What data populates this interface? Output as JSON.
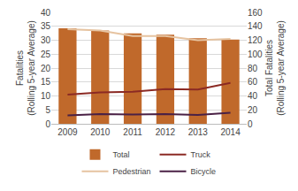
{
  "chart_data": {
    "type": "bar",
    "categories": [
      "2009",
      "2010",
      "2011",
      "2012",
      "2013",
      "2014"
    ],
    "y_label": "Fatalities (Rolling 5-year Average)",
    "y2_label": "Total Fatalities (Rolling 5-year Average)",
    "ylim": [
      0,
      40
    ],
    "yticks": [
      0,
      5,
      10,
      15,
      20,
      25,
      30,
      35,
      40
    ],
    "y2lim": [
      0,
      160
    ],
    "y2ticks": [
      0,
      20,
      40,
      60,
      80,
      100,
      120,
      140,
      160
    ],
    "grid": true,
    "legend": "bottom",
    "series": [
      {
        "name": "Total",
        "type": "bar",
        "axis": "y2",
        "color": "#c0692b",
        "values": [
          137,
          134,
          130,
          128,
          123,
          121
        ]
      },
      {
        "name": "Truck",
        "type": "line",
        "color": "#8b2a24",
        "values": [
          10.5,
          11.3,
          11.5,
          12.5,
          12.3,
          14.7
        ]
      },
      {
        "name": "Pedestrian",
        "type": "line",
        "color": "#e6c3a0",
        "values": [
          34,
          33.5,
          31.5,
          31.5,
          30,
          30.5
        ]
      },
      {
        "name": "Bicycle",
        "type": "line",
        "color": "#4a2145",
        "values": [
          3,
          3.5,
          3.3,
          3.5,
          3.2,
          4
        ]
      }
    ]
  }
}
